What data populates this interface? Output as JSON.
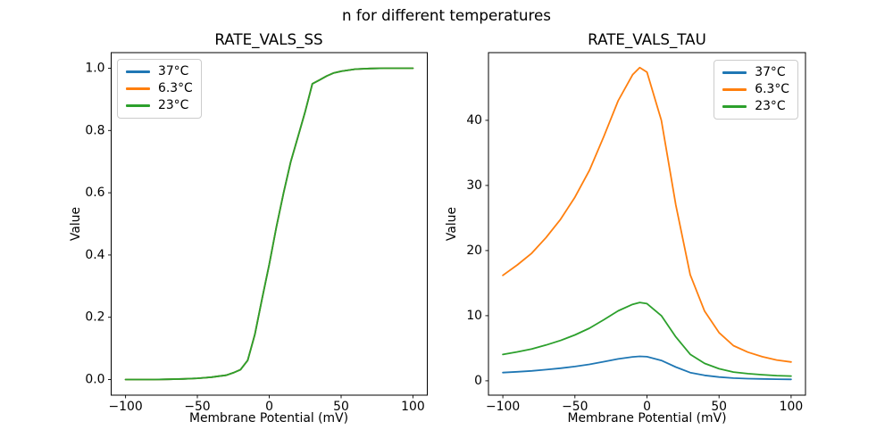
{
  "suptitle": "n for different temperatures",
  "palette": {
    "blue": "#1f77b4",
    "orange": "#ff7f0e",
    "green": "#2ca02c"
  },
  "chart_data": [
    {
      "type": "line",
      "title": "RATE_VALS_SS",
      "xlabel": "Membrane Potential (mV)",
      "ylabel": "Value",
      "xlim": [
        -110,
        110
      ],
      "ylim": [
        -0.05,
        1.05
      ],
      "xticks": [
        -100,
        -50,
        0,
        50,
        100
      ],
      "xtick_labels": [
        "−100",
        "−50",
        "0",
        "50",
        "100"
      ],
      "yticks": [
        0,
        0.2,
        0.4,
        0.6,
        0.8,
        1.0
      ],
      "ytick_labels": [
        "0.0",
        "0.2",
        "0.4",
        "0.6",
        "0.8",
        "1.0"
      ],
      "grid": false,
      "legend_position": "upper-left",
      "x": [
        -100,
        -90,
        -80,
        -70,
        -60,
        -50,
        -45,
        -40,
        -35,
        -30,
        -25,
        -20,
        -15,
        -10,
        -5,
        0,
        5,
        10,
        15,
        20,
        25,
        30,
        35,
        40,
        45,
        50,
        60,
        70,
        80,
        90,
        100
      ],
      "series": [
        {
          "name": "37°C",
          "color": "#1f77b4",
          "values": [
            0,
            0,
            0,
            0.001,
            0.002,
            0.004,
            0.006,
            0.008,
            0.011,
            0.014,
            0.022,
            0.032,
            0.062,
            0.145,
            0.26,
            0.37,
            0.49,
            0.6,
            0.7,
            0.78,
            0.86,
            0.95,
            0.962,
            0.975,
            0.985,
            0.99,
            0.997,
            0.999,
            1,
            1,
            1
          ]
        },
        {
          "name": "6.3°C",
          "color": "#ff7f0e",
          "values": [
            0,
            0,
            0,
            0.001,
            0.002,
            0.004,
            0.006,
            0.008,
            0.011,
            0.014,
            0.022,
            0.032,
            0.062,
            0.145,
            0.26,
            0.37,
            0.49,
            0.6,
            0.7,
            0.78,
            0.86,
            0.95,
            0.962,
            0.975,
            0.985,
            0.99,
            0.997,
            0.999,
            1,
            1,
            1
          ]
        },
        {
          "name": "23°C",
          "color": "#2ca02c",
          "values": [
            0,
            0,
            0,
            0.001,
            0.002,
            0.004,
            0.006,
            0.008,
            0.011,
            0.014,
            0.022,
            0.032,
            0.062,
            0.145,
            0.26,
            0.37,
            0.49,
            0.6,
            0.7,
            0.78,
            0.86,
            0.95,
            0.962,
            0.975,
            0.985,
            0.99,
            0.997,
            0.999,
            1,
            1,
            1
          ]
        }
      ]
    },
    {
      "type": "line",
      "title": "RATE_VALS_TAU",
      "xlabel": "Membrane Potential (mV)",
      "ylabel": "Value",
      "xlim": [
        -110,
        110
      ],
      "ylim": [
        -2.2,
        50.4
      ],
      "xticks": [
        -100,
        -50,
        0,
        50,
        100
      ],
      "xtick_labels": [
        "−100",
        "−50",
        "0",
        "50",
        "100"
      ],
      "yticks": [
        0,
        10,
        20,
        30,
        40
      ],
      "ytick_labels": [
        "0",
        "10",
        "20",
        "30",
        "40"
      ],
      "grid": false,
      "legend_position": "upper-right",
      "x": [
        -100,
        -90,
        -80,
        -70,
        -60,
        -50,
        -40,
        -30,
        -20,
        -10,
        -5,
        0,
        10,
        20,
        30,
        40,
        50,
        60,
        70,
        80,
        90,
        100
      ],
      "series": [
        {
          "name": "37°C",
          "color": "#1f77b4",
          "values": [
            1.27,
            1.39,
            1.53,
            1.72,
            1.94,
            2.2,
            2.52,
            2.93,
            3.36,
            3.67,
            3.76,
            3.7,
            3.13,
            2.11,
            1.27,
            0.84,
            0.58,
            0.42,
            0.34,
            0.29,
            0.25,
            0.23
          ]
        },
        {
          "name": "6.3°C",
          "color": "#ff7f0e",
          "values": [
            16.2,
            17.8,
            19.6,
            22.0,
            24.8,
            28.2,
            32.3,
            37.5,
            43.0,
            47.0,
            48.1,
            47.4,
            40.0,
            27.0,
            16.3,
            10.7,
            7.4,
            5.4,
            4.4,
            3.7,
            3.2,
            2.9
          ]
        },
        {
          "name": "23°C",
          "color": "#2ca02c",
          "values": [
            4.05,
            4.45,
            4.9,
            5.5,
            6.2,
            7.05,
            8.08,
            9.38,
            10.75,
            11.75,
            12.03,
            11.85,
            10.0,
            6.75,
            4.08,
            2.68,
            1.85,
            1.35,
            1.1,
            0.93,
            0.8,
            0.73
          ]
        }
      ]
    }
  ]
}
